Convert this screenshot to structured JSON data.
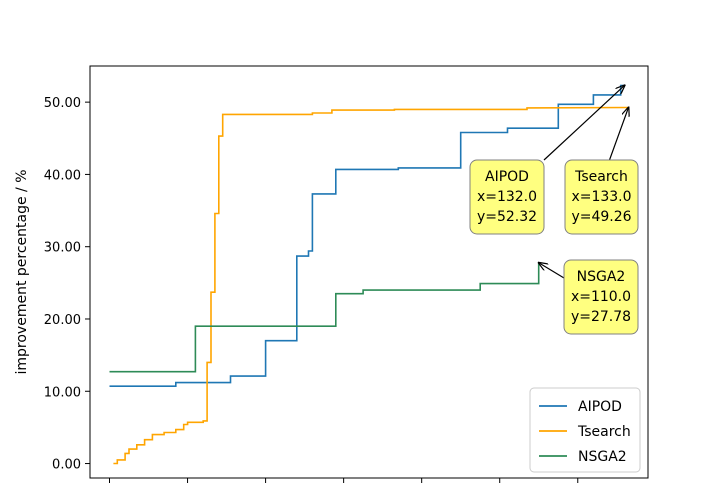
{
  "chart_data": {
    "type": "line",
    "title": "",
    "xlabel": "",
    "ylabel": "improvement percentage / %",
    "xlim": [
      -5,
      138
    ],
    "ylim": [
      -2,
      55
    ],
    "yticks": [
      0,
      10,
      20,
      30,
      40,
      50
    ],
    "ytick_labels": [
      "0.00",
      "10.00",
      "20.00",
      "30.00",
      "40.00",
      "50.00"
    ],
    "xticks": [
      0,
      20,
      40,
      60,
      80,
      100,
      120
    ],
    "xtick_labels_visible": false,
    "grid": false,
    "legend_placement": "lower-right",
    "step_style": "post",
    "series": [
      {
        "name": "AIPOD",
        "color": "#1f77b4",
        "points": [
          [
            0,
            10.7
          ],
          [
            17,
            10.7
          ],
          [
            17,
            11.2
          ],
          [
            31,
            11.2
          ],
          [
            31,
            12.1
          ],
          [
            40,
            12.1
          ],
          [
            40,
            17.0
          ],
          [
            48,
            17.0
          ],
          [
            48,
            28.7
          ],
          [
            51,
            28.7
          ],
          [
            51,
            29.4
          ],
          [
            52,
            29.4
          ],
          [
            52,
            37.3
          ],
          [
            58,
            37.3
          ],
          [
            58,
            40.7
          ],
          [
            74,
            40.7
          ],
          [
            74,
            40.9
          ],
          [
            90,
            40.9
          ],
          [
            90,
            45.8
          ],
          [
            102,
            45.8
          ],
          [
            102,
            46.4
          ],
          [
            115,
            46.4
          ],
          [
            115,
            49.7
          ],
          [
            124,
            49.7
          ],
          [
            124,
            51.0
          ],
          [
            131,
            51.0
          ],
          [
            131,
            52.3
          ],
          [
            132,
            52.32
          ]
        ]
      },
      {
        "name": "Tsearch",
        "color": "#ffa500",
        "points": [
          [
            1,
            0.0
          ],
          [
            2,
            0.0
          ],
          [
            2,
            0.5
          ],
          [
            4,
            0.5
          ],
          [
            4,
            1.4
          ],
          [
            5,
            1.4
          ],
          [
            5,
            2.0
          ],
          [
            7,
            2.0
          ],
          [
            7,
            2.6
          ],
          [
            9,
            2.6
          ],
          [
            9,
            3.3
          ],
          [
            11,
            3.3
          ],
          [
            11,
            4.0
          ],
          [
            14,
            4.0
          ],
          [
            14,
            4.3
          ],
          [
            17,
            4.3
          ],
          [
            17,
            4.7
          ],
          [
            19,
            4.7
          ],
          [
            19,
            5.4
          ],
          [
            20,
            5.4
          ],
          [
            20,
            5.7
          ],
          [
            24,
            5.7
          ],
          [
            24,
            5.9
          ],
          [
            25,
            5.9
          ],
          [
            25,
            14.0
          ],
          [
            26,
            14.0
          ],
          [
            26,
            23.7
          ],
          [
            27,
            23.7
          ],
          [
            27,
            34.6
          ],
          [
            28,
            34.6
          ],
          [
            28,
            45.3
          ],
          [
            29,
            45.3
          ],
          [
            29,
            48.3
          ],
          [
            52,
            48.3
          ],
          [
            52,
            48.5
          ],
          [
            57,
            48.5
          ],
          [
            57,
            48.9
          ],
          [
            73,
            48.9
          ],
          [
            73,
            49.0
          ],
          [
            107,
            49.0
          ],
          [
            107,
            49.2
          ],
          [
            133,
            49.26
          ]
        ]
      },
      {
        "name": "NSGA2",
        "color": "#2e8b57",
        "points": [
          [
            0,
            12.7
          ],
          [
            22,
            12.7
          ],
          [
            22,
            19.0
          ],
          [
            58,
            19.0
          ],
          [
            58,
            23.5
          ],
          [
            65,
            23.5
          ],
          [
            65,
            24.0
          ],
          [
            95,
            24.0
          ],
          [
            95,
            24.9
          ],
          [
            110,
            24.9
          ],
          [
            110,
            27.78
          ]
        ]
      }
    ],
    "annotations": [
      {
        "series": "AIPOD",
        "lines": [
          "AIPOD",
          "x=132.0",
          "y=52.32"
        ],
        "point": [
          132,
          52.32
        ]
      },
      {
        "series": "Tsearch",
        "lines": [
          "Tsearch",
          "x=133.0",
          "y=49.26"
        ],
        "point": [
          133,
          49.26
        ]
      },
      {
        "series": "NSGA2",
        "lines": [
          "NSGA2",
          "x=110.0",
          "y=27.78"
        ],
        "point": [
          110,
          27.78
        ]
      }
    ]
  }
}
